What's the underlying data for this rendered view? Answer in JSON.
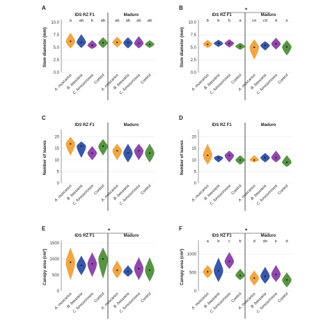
{
  "colors": {
    "A. muscarius": "#f0a23a",
    "B. bassiana": "#2f4fa2",
    "C. fumosorosea": "#8a3fa6",
    "Control": "#4f8f3a"
  },
  "chart_data": [
    {
      "panel": "A",
      "type": "violin",
      "ylabel": "Stem diameter (mm)",
      "ylim": [
        0,
        10
      ],
      "yticks": [
        "0.0",
        "2.5",
        "5.0",
        "7.5",
        "10.0"
      ],
      "grid": true,
      "categories": [
        "A. muscarius",
        "B. bassiana",
        "C. fumosorosea",
        "Control"
      ],
      "groups": [
        {
          "name": "IDS RZ F1",
          "medians": [
            6.2,
            6.0,
            5.4,
            5.9
          ],
          "lows": [
            4.8,
            4.9,
            4.7,
            4.9
          ],
          "highs": [
            7.9,
            7.6,
            6.4,
            7.0
          ],
          "letters": [
            "a",
            "ab",
            "b",
            "ab"
          ]
        },
        {
          "name": "Maduro",
          "medians": [
            6.0,
            5.9,
            5.8,
            5.6
          ],
          "lows": [
            5.0,
            4.8,
            4.8,
            4.9
          ],
          "highs": [
            7.1,
            7.0,
            7.2,
            6.4
          ],
          "letters": [
            "ab",
            "ab",
            "ab",
            "ab"
          ]
        }
      ],
      "significance": false
    },
    {
      "panel": "B",
      "type": "violin",
      "ylabel": "Stem diameter (mm)",
      "ylim": [
        0,
        10
      ],
      "yticks": [
        "0.0",
        "2.5",
        "5.0",
        "7.5",
        "10.0"
      ],
      "grid": true,
      "categories": [
        "A. muscarius",
        "B. bassiana",
        "C. fumosorosea",
        "Control"
      ],
      "groups": [
        {
          "name": "IDS RZ F1",
          "medians": [
            5.6,
            5.8,
            5.8,
            5.2
          ],
          "lows": [
            4.9,
            5.1,
            5.0,
            4.5
          ],
          "highs": [
            6.5,
            6.5,
            6.6,
            5.9
          ],
          "letters": [
            "b",
            "b",
            "b",
            "a"
          ]
        },
        {
          "name": "Maduro",
          "medians": [
            5.0,
            5.4,
            5.7,
            5.1
          ],
          "lows": [
            2.6,
            4.4,
            4.6,
            3.4
          ],
          "highs": [
            6.6,
            6.2,
            6.9,
            6.4
          ],
          "letters": [
            "ce",
            "cd",
            "d",
            "e"
          ]
        }
      ],
      "significance": true,
      "star": "*"
    },
    {
      "panel": "C",
      "type": "violin",
      "ylabel": "Number of leaves",
      "ylim": [
        0,
        22
      ],
      "yticks": [
        "0",
        "5",
        "10",
        "15",
        "20"
      ],
      "grid": true,
      "categories": [
        "A. muscarius",
        "B. bassiana",
        "C. fumosorosea",
        "Control"
      ],
      "groups": [
        {
          "name": "IDS RZ F1",
          "medians": [
            17,
            16,
            13,
            16
          ],
          "lows": [
            12,
            11,
            10,
            12
          ],
          "highs": [
            20,
            18,
            16,
            19
          ],
          "letters": [
            "",
            "",
            "",
            ""
          ]
        },
        {
          "name": "Maduro",
          "medians": [
            14,
            13,
            14,
            13
          ],
          "lows": [
            10,
            9,
            10,
            9
          ],
          "highs": [
            17,
            17,
            17,
            17
          ],
          "letters": [
            "",
            "",
            "",
            ""
          ]
        }
      ],
      "significance": false
    },
    {
      "panel": "D",
      "type": "violin",
      "ylabel": "Number of leaves",
      "ylim": [
        0,
        22
      ],
      "yticks": [
        "0",
        "5",
        "10",
        "15",
        "20"
      ],
      "grid": true,
      "categories": [
        "A. muscarius",
        "B. bassiana",
        "C. fumosorosea",
        "Control"
      ],
      "groups": [
        {
          "name": "IDS RZ F1",
          "medians": [
            12,
            11,
            12,
            10
          ],
          "lows": [
            8,
            9,
            9,
            8
          ],
          "highs": [
            17,
            12,
            14,
            12
          ],
          "letters": [
            "",
            "",
            "",
            ""
          ]
        },
        {
          "name": "Maduro",
          "medians": [
            10,
            11,
            11,
            9
          ],
          "lows": [
            9,
            9,
            9,
            7
          ],
          "highs": [
            12,
            13,
            14,
            12
          ],
          "letters": [
            "",
            "",
            "",
            ""
          ]
        }
      ],
      "significance": false
    },
    {
      "panel": "E",
      "type": "violin",
      "ylabel": "Canopy area (cm²)",
      "ylim": [
        0,
        1500
      ],
      "yticks": [
        "0",
        "500",
        "1000",
        "1500"
      ],
      "grid": true,
      "categories": [
        "A. muscarius",
        "B. bassiana",
        "C. fumosorosea",
        "Control"
      ],
      "groups": [
        {
          "name": "IDS RZ F1",
          "medians": [
            900,
            800,
            850,
            1000
          ],
          "lows": [
            350,
            500,
            450,
            400
          ],
          "highs": [
            1350,
            1100,
            1200,
            1350
          ],
          "letters": [
            "",
            "",
            "",
            ""
          ]
        },
        {
          "name": "Maduro",
          "medians": [
            650,
            600,
            700,
            650
          ],
          "lows": [
            400,
            450,
            350,
            300
          ],
          "highs": [
            950,
            800,
            1050,
            1050
          ],
          "letters": [
            "",
            "",
            "",
            ""
          ]
        }
      ],
      "significance": true,
      "star": "*"
    },
    {
      "panel": "F",
      "type": "violin",
      "ylabel": "Canopy area (cm²)",
      "ylim": [
        0,
        1300
      ],
      "yticks": [
        "0",
        "500",
        "1000"
      ],
      "grid": true,
      "categories": [
        "A. muscarius",
        "B. bassiana",
        "C. fumosorosea",
        "Control"
      ],
      "groups": [
        {
          "name": "IDS RZ F1",
          "medians": [
            520,
            550,
            800,
            420
          ],
          "lows": [
            350,
            250,
            600,
            300
          ],
          "highs": [
            700,
            900,
            1050,
            600
          ],
          "letters": [
            "a",
            "b",
            "c",
            "b"
          ]
        },
        {
          "name": "Maduro",
          "medians": [
            350,
            400,
            450,
            300
          ],
          "lows": [
            150,
            200,
            250,
            100
          ],
          "highs": [
            550,
            650,
            700,
            500
          ],
          "letters": [
            "d",
            "de",
            "e",
            "d"
          ]
        }
      ],
      "significance": true,
      "star": "*"
    }
  ]
}
